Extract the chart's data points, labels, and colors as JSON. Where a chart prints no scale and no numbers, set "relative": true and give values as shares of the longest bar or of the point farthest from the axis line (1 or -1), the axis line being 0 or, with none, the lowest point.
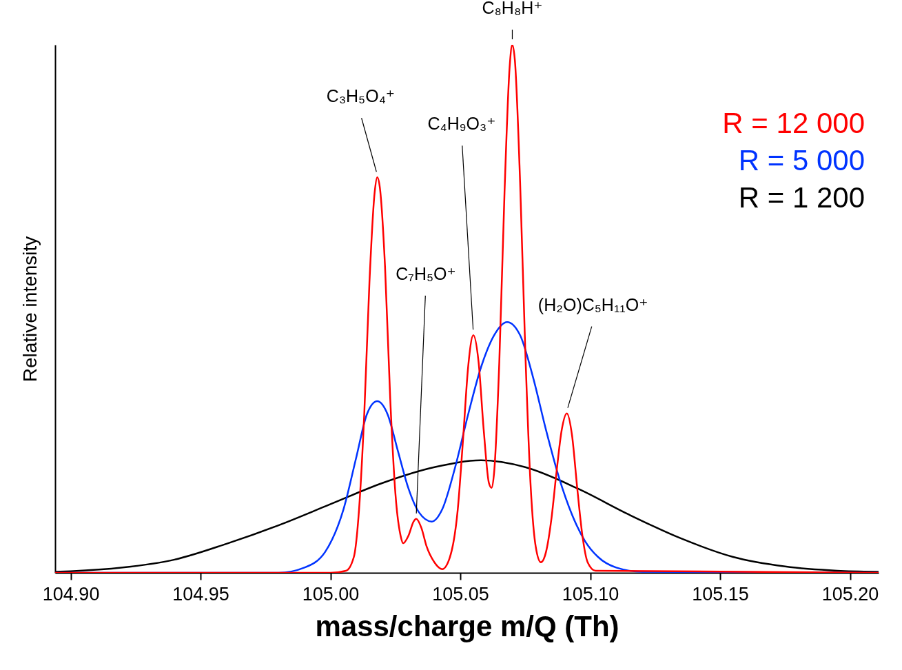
{
  "chart_data": {
    "type": "line",
    "relative": true,
    "xlabel": "mass/charge m/Q (Th)",
    "ylabel": "Relative intensity",
    "xlim": [
      104.894,
      105.211
    ],
    "xticks": [
      {
        "value": 104.9,
        "label": "104.90"
      },
      {
        "value": 104.95,
        "label": "104.95"
      },
      {
        "value": 105,
        "label": "105.00"
      },
      {
        "value": 105.05,
        "label": "105.05"
      },
      {
        "value": 105.1,
        "label": "105.10"
      },
      {
        "value": 105.15,
        "label": "105.15"
      },
      {
        "value": 105.2,
        "label": "105.20"
      }
    ],
    "grid": false,
    "legend": "top right",
    "marker": "none",
    "line_style": "solid",
    "series": [
      {
        "name": "R = 1 200",
        "color": "#000000",
        "x": [
          104.894,
          104.9,
          104.92,
          104.94,
          104.96,
          104.98,
          105.0,
          105.02,
          105.04,
          105.058,
          105.075,
          105.095,
          105.115,
          105.135,
          105.155,
          105.175,
          105.195,
          105.211
        ],
        "values": [
          0.002,
          0.003,
          0.01,
          0.025,
          0.055,
          0.09,
          0.13,
          0.17,
          0.2,
          0.213,
          0.2,
          0.16,
          0.11,
          0.065,
          0.03,
          0.012,
          0.004,
          0.002
        ]
      },
      {
        "name": "R = 5 000",
        "color": "#0033ff",
        "x": [
          104.894,
          104.98,
          104.99,
          104.998,
          105.005,
          105.01,
          105.014,
          105.018,
          105.022,
          105.026,
          105.03,
          105.034,
          105.039,
          105.043,
          105.048,
          105.053,
          105.058,
          105.063,
          105.068,
          105.073,
          105.078,
          105.083,
          105.088,
          105.093,
          105.098,
          105.103,
          105.11,
          105.12,
          105.211
        ],
        "values": [
          0,
          0,
          0.01,
          0.04,
          0.12,
          0.22,
          0.3,
          0.325,
          0.3,
          0.23,
          0.16,
          0.115,
          0.097,
          0.12,
          0.2,
          0.3,
          0.39,
          0.45,
          0.475,
          0.45,
          0.37,
          0.27,
          0.18,
          0.11,
          0.06,
          0.03,
          0.01,
          0.002,
          0
        ]
      },
      {
        "name": "R = 12 000",
        "color": "#ff0000",
        "x": [
          104.894,
          105.0,
          105.006,
          105.009,
          105.011,
          105.013,
          105.015,
          105.017,
          105.018,
          105.019,
          105.021,
          105.023,
          105.025,
          105.027,
          105.028,
          105.03,
          105.032,
          105.033,
          105.035,
          105.037,
          105.04,
          105.043,
          105.046,
          105.049,
          105.051,
          105.053,
          105.055,
          105.057,
          105.059,
          105.061,
          105.062,
          105.063,
          105.065,
          105.067,
          105.069,
          105.07,
          105.071,
          105.073,
          105.075,
          105.077,
          105.079,
          105.081,
          105.083,
          105.085,
          105.087,
          105.089,
          105.091,
          105.093,
          105.095,
          105.097,
          105.099,
          105.102,
          105.211
        ],
        "values": [
          0,
          0,
          0.004,
          0.03,
          0.12,
          0.3,
          0.55,
          0.72,
          0.749,
          0.73,
          0.58,
          0.33,
          0.15,
          0.07,
          0.056,
          0.07,
          0.097,
          0.102,
          0.085,
          0.05,
          0.02,
          0.007,
          0.03,
          0.12,
          0.25,
          0.39,
          0.45,
          0.4,
          0.27,
          0.17,
          0.161,
          0.19,
          0.4,
          0.72,
          0.96,
          1.0,
          0.97,
          0.74,
          0.42,
          0.17,
          0.05,
          0.02,
          0.04,
          0.1,
          0.19,
          0.27,
          0.302,
          0.26,
          0.16,
          0.07,
          0.02,
          0.004,
          0
        ]
      }
    ],
    "annotations": [
      {
        "text": "C₃H₅O₄⁺",
        "x": 105.018,
        "y": 0.749
      },
      {
        "text": "C₇H₅O⁺",
        "x": 105.033,
        "y": 0.102
      },
      {
        "text": "C₄H₉O₃⁺",
        "x": 105.055,
        "y": 0.45
      },
      {
        "text": "C₈H₈H⁺",
        "x": 105.07,
        "y": 1.0
      },
      {
        "text": "(H₂O)C₅H₁₁O⁺",
        "x": 105.091,
        "y": 0.302
      }
    ]
  }
}
